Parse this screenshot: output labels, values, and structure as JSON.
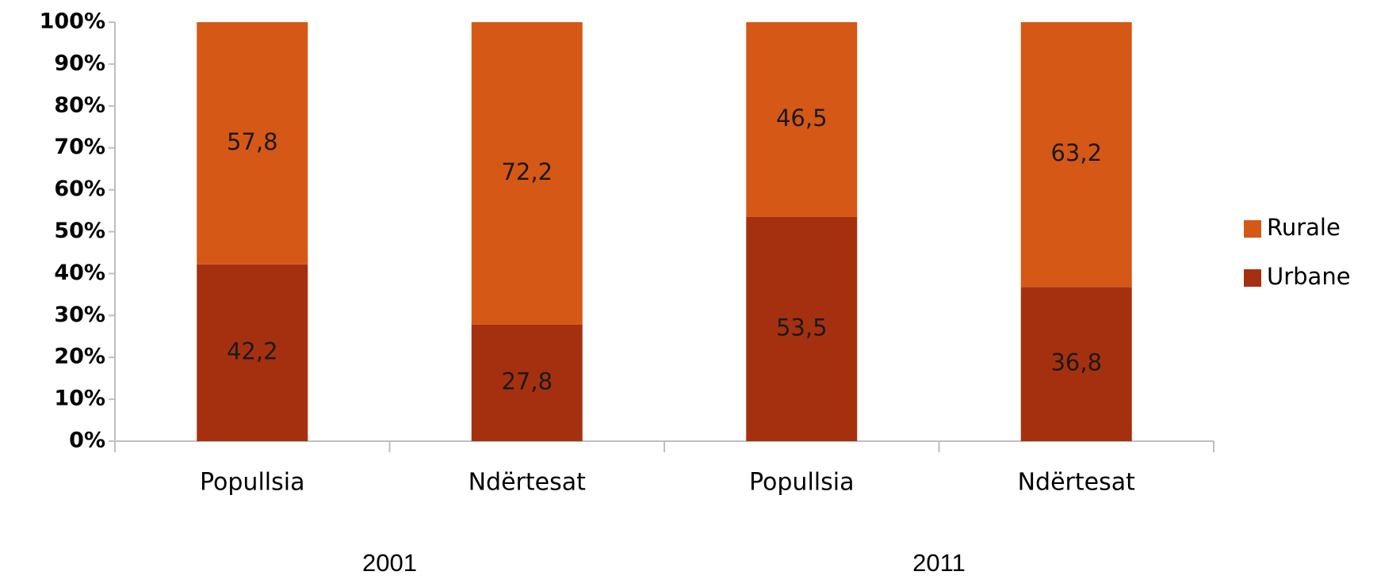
{
  "chart_data": {
    "type": "bar",
    "stacked": true,
    "categories": [
      "Popullsia",
      "Ndërtesat",
      "Popullsia",
      "Ndërtesat"
    ],
    "group_labels": [
      "2001",
      "2011"
    ],
    "series": [
      {
        "name": "Urbane",
        "color": "#a5300f",
        "values": [
          42.2,
          27.8,
          53.5,
          36.8
        ],
        "value_labels": [
          "42,2",
          "27,8",
          "53,5",
          "36,8"
        ]
      },
      {
        "name": "Rurale",
        "color": "#d55816",
        "values": [
          57.8,
          72.2,
          46.5,
          63.2
        ],
        "value_labels": [
          "57,8",
          "72,2",
          "46,5",
          "63,2"
        ]
      }
    ],
    "ylim": [
      0,
      100
    ],
    "yticks": [
      {
        "value": 0,
        "label": "0%"
      },
      {
        "value": 10,
        "label": "10%"
      },
      {
        "value": 20,
        "label": "20%"
      },
      {
        "value": 30,
        "label": "30%"
      },
      {
        "value": 40,
        "label": "40%"
      },
      {
        "value": 50,
        "label": "50%"
      },
      {
        "value": 60,
        "label": "60%"
      },
      {
        "value": 70,
        "label": "70%"
      },
      {
        "value": 80,
        "label": "80%"
      },
      {
        "value": 90,
        "label": "90%"
      },
      {
        "value": 100,
        "label": "100%"
      }
    ],
    "grid": false,
    "legend": "right"
  }
}
